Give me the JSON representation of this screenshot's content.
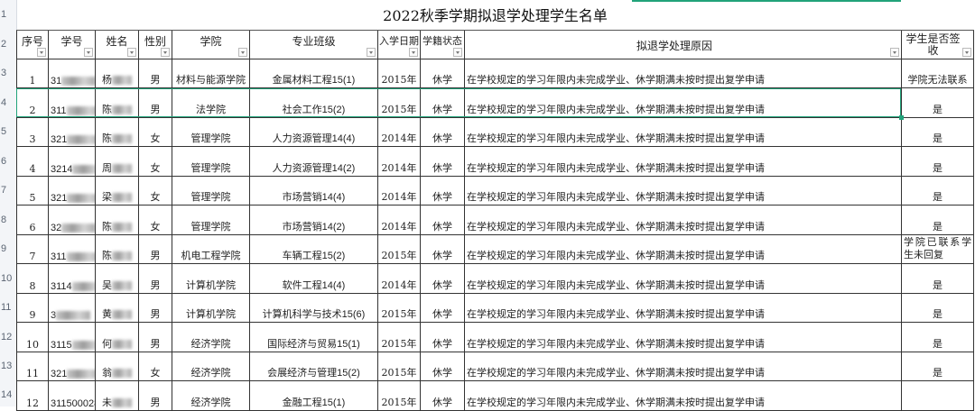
{
  "title": "2022秋季学期拟退学处理学生名单",
  "row_numbers": [
    "1",
    "2",
    "3",
    "4",
    "5",
    "6",
    "7",
    "8",
    "9",
    "10",
    "11",
    "12",
    "13",
    "14"
  ],
  "headers": [
    "序号",
    "学号",
    "姓名",
    "性别",
    "学院",
    "专业班级",
    "入学日期",
    "学籍状态",
    "拟退学处理原因",
    "学生是否签收"
  ],
  "accent_color": "#21a37a",
  "rows": [
    {
      "no": "1",
      "id_pre": "31",
      "id_suf": "3",
      "name": "杨",
      "sex": "男",
      "college": "材料与能源学院",
      "class": "金属材料工程15(1)",
      "year": "2015年",
      "status": "休学",
      "reason": "在学校规定的学习年限内未完成学业、休学期满未按时提出复学申请",
      "signed": "学院无法联系"
    },
    {
      "no": "2",
      "id_pre": "311",
      "id_suf": "",
      "name": "陈",
      "sex": "男",
      "college": "法学院",
      "class": "社会工作15(2)",
      "year": "2015年",
      "status": "休学",
      "reason": "在学校规定的学习年限内未完成学业、休学期满未按时提出复学申请",
      "signed": "是"
    },
    {
      "no": "3",
      "id_pre": "321",
      "id_suf": "3",
      "name": "陈",
      "sex": "女",
      "college": "管理学院",
      "class": "人力资源管理14(4)",
      "year": "2014年",
      "status": "休学",
      "reason": "在学校规定的学习年限内未完成学业、休学期满未按时提出复学申请",
      "signed": "是"
    },
    {
      "no": "4",
      "id_pre": "3214",
      "id_suf": "3",
      "name": "周",
      "sex": "女",
      "college": "管理学院",
      "class": "人力资源管理14(2)",
      "year": "2014年",
      "status": "休学",
      "reason": "在学校规定的学习年限内未完成学业、休学期满未按时提出复学申请",
      "signed": "是"
    },
    {
      "no": "5",
      "id_pre": "321",
      "id_suf": "7",
      "name": "梁",
      "sex": "女",
      "college": "管理学院",
      "class": "市场营销14(4)",
      "year": "2014年",
      "status": "休学",
      "reason": "在学校规定的学习年限内未完成学业、休学期满未按时提出复学申请",
      "signed": "是"
    },
    {
      "no": "6",
      "id_pre": "32",
      "id_suf": "",
      "name": "陈",
      "sex": "女",
      "college": "管理学院",
      "class": "市场营销14(2)",
      "year": "2014年",
      "status": "休学",
      "reason": "在学校规定的学习年限内未完成学业、休学期满未按时提出复学申请",
      "signed": "是"
    },
    {
      "no": "7",
      "id_pre": "311",
      "id_suf": "48",
      "name": "陈",
      "sex": "男",
      "college": "机电工程学院",
      "class": "车辆工程15(2)",
      "year": "2015年",
      "status": "休学",
      "reason": "在学校规定的学习年限内未完成学业、休学期满未按时提出复学申请",
      "signed": "学院已联系学生未回复"
    },
    {
      "no": "8",
      "id_pre": "3114",
      "id_suf": "03",
      "name": "吴",
      "sex": "男",
      "college": "计算机学院",
      "class": "软件工程14(4)",
      "year": "2014年",
      "status": "休学",
      "reason": "在学校规定的学习年限内未完成学业、休学期满未按时提出复学申请",
      "signed": "是"
    },
    {
      "no": "9",
      "id_pre": "3",
      "id_suf": "",
      "name": "黄",
      "sex": "男",
      "college": "计算机学院",
      "class": "计算机科学与技术15(6)",
      "year": "2015年",
      "status": "休学",
      "reason": "在学校规定的学习年限内未完成学业、休学期满未按时提出复学申请",
      "signed": "是"
    },
    {
      "no": "10",
      "id_pre": "3115",
      "id_suf": "",
      "name": "何",
      "sex": "男",
      "college": "经济学院",
      "class": "国际经济与贸易15(1)",
      "year": "2015年",
      "status": "休学",
      "reason": "在学校规定的学习年限内未完成学业、休学期满未按时提出复学申请",
      "signed": "是"
    },
    {
      "no": "11",
      "id_pre": "321",
      "id_suf": "199",
      "name": "翁",
      "sex": "女",
      "college": "经济学院",
      "class": "会展经济与管理15(2)",
      "year": "2015年",
      "status": "休学",
      "reason": "在学校规定的学习年限内未完成学业、休学期满未按时提出复学申请",
      "signed": "是"
    },
    {
      "no": "12",
      "id_pre": "3115000286",
      "id_suf": "",
      "name": "未",
      "sex": "男",
      "college": "经济学院",
      "class": "金融工程15(1)",
      "year": "2015年",
      "status": "休学",
      "reason": "在学校规定的学习年限内未完成学业、休学期满未按时提出复学申请",
      "signed": ""
    }
  ]
}
